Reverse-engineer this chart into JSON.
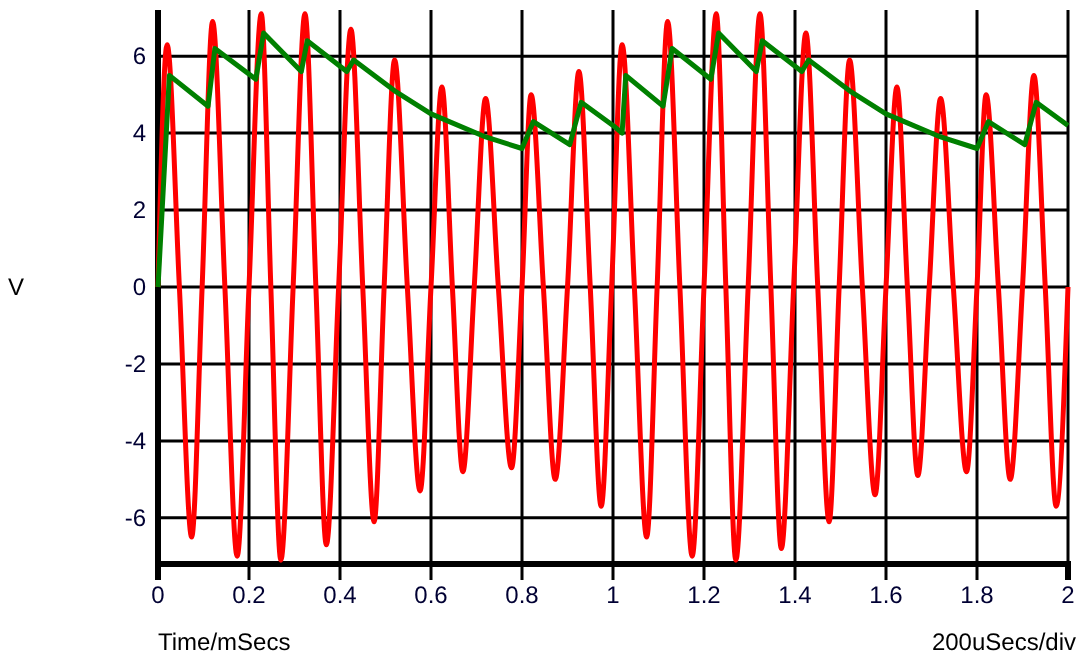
{
  "chart_data": {
    "type": "line",
    "xlabel": "Time/mSecs",
    "ylabel": "V",
    "annotations": [
      "200uSecs/div"
    ],
    "xlim": [
      0,
      2
    ],
    "ylim": [
      -7.2,
      7.2
    ],
    "xticks": [
      0,
      0.2,
      0.4,
      0.6,
      0.8,
      1,
      1.2,
      1.4,
      1.6,
      1.8,
      2
    ],
    "yticks": [
      -6,
      -4,
      -2,
      0,
      2,
      4,
      6
    ],
    "grid": true,
    "marker": "none",
    "line_style": "solid",
    "series": [
      {
        "color": "#ff0000",
        "x": [
          0,
          0.02,
          0.047,
          0.074,
          0.097,
          0.12,
          0.147,
          0.174,
          0.2,
          0.227,
          0.248,
          0.27,
          0.297,
          0.323,
          0.347,
          0.37,
          0.397,
          0.424,
          0.45,
          0.475,
          0.497,
          0.52,
          0.548,
          0.576,
          0.6,
          0.624,
          0.647,
          0.67,
          0.695,
          0.72,
          0.748,
          0.777,
          0.8,
          0.82,
          0.847,
          0.873,
          0.9,
          0.925,
          0.95,
          0.974,
          0.997,
          1.02,
          1.047,
          1.074,
          1.097,
          1.12,
          1.147,
          1.174,
          1.2,
          1.227,
          1.248,
          1.27,
          1.297,
          1.323,
          1.347,
          1.37,
          1.397,
          1.424,
          1.45,
          1.475,
          1.497,
          1.52,
          1.548,
          1.576,
          1.6,
          1.624,
          1.647,
          1.67,
          1.695,
          1.72,
          1.748,
          1.777,
          1.8,
          1.82,
          1.847,
          1.873,
          1.9,
          1.925,
          1.95,
          1.974,
          2
        ],
        "values": [
          0,
          6.3,
          0,
          -6.5,
          0,
          6.9,
          0,
          -7,
          0,
          7.1,
          0,
          -7.1,
          0,
          7.1,
          0,
          -6.7,
          0,
          6.7,
          0,
          -6.1,
          0,
          5.9,
          0,
          -5.3,
          0,
          5.2,
          0,
          -4.8,
          0,
          4.9,
          0,
          -4.7,
          0,
          5,
          0,
          -5,
          0,
          5.6,
          0,
          -5.7,
          0,
          6.3,
          0,
          -6.5,
          0,
          6.9,
          0,
          -7,
          0,
          7.1,
          0,
          -7.1,
          0,
          7.1,
          0,
          -6.8,
          0,
          6.6,
          0,
          -6.1,
          0,
          5.9,
          0,
          -5.4,
          0,
          5.2,
          0,
          -4.9,
          0,
          4.9,
          0,
          -4.8,
          0,
          5,
          0,
          -5,
          0,
          5.5,
          0,
          -5.7,
          0
        ]
      },
      {
        "color": "#008000",
        "type": "line",
        "x": [
          0,
          0.025,
          0.11,
          0.125,
          0.215,
          0.232,
          0.315,
          0.328,
          0.415,
          0.43,
          0.52,
          0.6,
          0.72,
          0.8,
          0.825,
          0.905,
          0.93,
          1.0,
          1.02,
          1.028,
          1.11,
          1.13,
          1.215,
          1.232,
          1.315,
          1.328,
          1.415,
          1.43,
          1.52,
          1.6,
          1.72,
          1.8,
          1.825,
          1.905,
          1.93,
          2
        ],
        "values": [
          0,
          5.5,
          4.7,
          6.2,
          5.4,
          6.6,
          5.6,
          6.4,
          5.6,
          5.9,
          5.1,
          4.5,
          3.9,
          3.6,
          4.3,
          3.7,
          4.8,
          4.2,
          4.0,
          5.5,
          4.7,
          6.2,
          5.4,
          6.6,
          5.6,
          6.4,
          5.6,
          5.9,
          5.1,
          4.5,
          3.9,
          3.6,
          4.3,
          3.7,
          4.8,
          4.2
        ]
      }
    ]
  }
}
